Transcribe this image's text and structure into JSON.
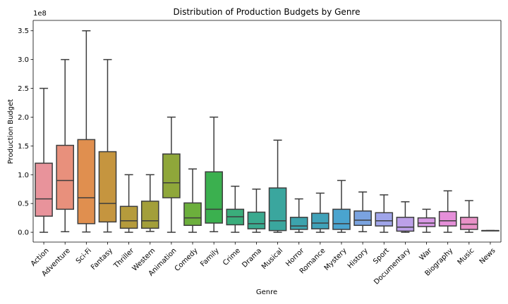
{
  "chart_data": {
    "type": "box",
    "title": "Distribution of Production Budgets by Genre",
    "xlabel": "Genre",
    "ylabel": "Production Budget",
    "y_offset_label": "1e8",
    "y_tick_values": [
      0,
      50000000,
      100000000,
      150000000,
      200000000,
      250000000,
      300000000,
      350000000
    ],
    "y_tick_labels": [
      "0.0",
      "0.5",
      "1.0",
      "1.5",
      "2.0",
      "2.5",
      "3.0",
      "3.5"
    ],
    "ylim": [
      -17000000,
      368000000
    ],
    "grid": false,
    "legend": "none",
    "series": [
      {
        "category": "Action",
        "color": "#e8939b",
        "min": 0,
        "q1": 28000000,
        "median": 58000000,
        "q3": 120000000,
        "max": 250000000
      },
      {
        "category": "Adventure",
        "color": "#e8907c",
        "min": 1000000,
        "q1": 40000000,
        "median": 90000000,
        "q3": 151000000,
        "max": 300000000
      },
      {
        "category": "Sci-Fi",
        "color": "#e08f4f",
        "min": 500000,
        "q1": 15000000,
        "median": 60000000,
        "q3": 161000000,
        "max": 350000000
      },
      {
        "category": "Fantasy",
        "color": "#c5953f",
        "min": 500000,
        "q1": 18000000,
        "median": 50000000,
        "q3": 140000000,
        "max": 300000000
      },
      {
        "category": "Thriller",
        "color": "#b59b3c",
        "min": 0,
        "q1": 7000000,
        "median": 20000000,
        "q3": 45000000,
        "max": 100000000
      },
      {
        "category": "Western",
        "color": "#a39f3a",
        "min": 1500000,
        "q1": 7000000,
        "median": 20000000,
        "q3": 54000000,
        "max": 100000000
      },
      {
        "category": "Animation",
        "color": "#8fa73a",
        "min": 0,
        "q1": 60000000,
        "median": 86000000,
        "q3": 136000000,
        "max": 200000000
      },
      {
        "category": "Comedy",
        "color": "#6caf3c",
        "min": 0,
        "q1": 12000000,
        "median": 25000000,
        "q3": 51000000,
        "max": 110000000
      },
      {
        "category": "Family",
        "color": "#3bb04f",
        "min": 1000000,
        "q1": 16000000,
        "median": 40000000,
        "q3": 105000000,
        "max": 200000000
      },
      {
        "category": "Crime",
        "color": "#3aad7b",
        "min": 0,
        "q1": 13000000,
        "median": 27000000,
        "q3": 40000000,
        "max": 80000000
      },
      {
        "category": "Drama",
        "color": "#3aaa8f",
        "min": 0,
        "q1": 6000000,
        "median": 15000000,
        "q3": 35000000,
        "max": 75000000
      },
      {
        "category": "Musical",
        "color": "#3aa69e",
        "min": 0,
        "q1": 3000000,
        "median": 20000000,
        "q3": 77000000,
        "max": 160000000
      },
      {
        "category": "Horror",
        "color": "#3ca3ad",
        "min": 0,
        "q1": 5000000,
        "median": 11000000,
        "q3": 26000000,
        "max": 58000000
      },
      {
        "category": "Romance",
        "color": "#40a2b9",
        "min": 0,
        "q1": 6000000,
        "median": 16000000,
        "q3": 33000000,
        "max": 68000000
      },
      {
        "category": "Mystery",
        "color": "#4aa4cf",
        "min": 0,
        "q1": 5000000,
        "median": 15000000,
        "q3": 40000000,
        "max": 90000000
      },
      {
        "category": "History",
        "color": "#7aa3e0",
        "min": 1000000,
        "q1": 12000000,
        "median": 21000000,
        "q3": 37000000,
        "max": 70000000
      },
      {
        "category": "Sport",
        "color": "#a0a5ea",
        "min": 0,
        "q1": 11000000,
        "median": 20000000,
        "q3": 34000000,
        "max": 65000000
      },
      {
        "category": "Documentary",
        "color": "#bca0e8",
        "min": 0,
        "q1": 2000000,
        "median": 9000000,
        "q3": 26000000,
        "max": 53000000
      },
      {
        "category": "War",
        "color": "#d898e5",
        "min": 0,
        "q1": 10000000,
        "median": 16000000,
        "q3": 25000000,
        "max": 40000000
      },
      {
        "category": "Biography",
        "color": "#e58fd9",
        "min": 0,
        "q1": 11000000,
        "median": 20000000,
        "q3": 36000000,
        "max": 72000000
      },
      {
        "category": "Music",
        "color": "#e891c7",
        "min": 0,
        "q1": 5000000,
        "median": 14000000,
        "q3": 26000000,
        "max": 55000000
      },
      {
        "category": "News",
        "color": "#e894b0",
        "min": 3000000,
        "q1": 3000000,
        "median": 3000000,
        "q3": 3000000,
        "max": 3000000
      }
    ]
  }
}
